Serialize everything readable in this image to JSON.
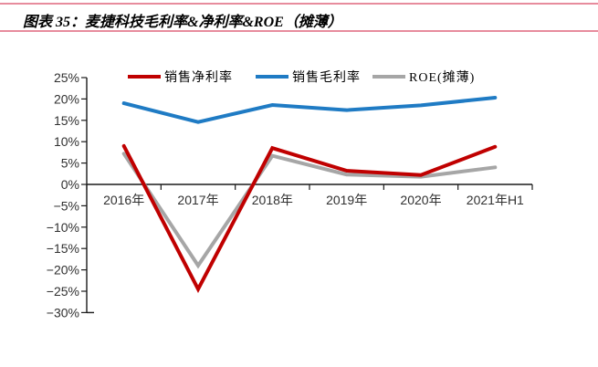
{
  "header": {
    "title": "图表 35：麦捷科技毛利率&净利率&ROE（摊薄）"
  },
  "colors": {
    "rule_pink": "#e78c9d",
    "axis_black": "#1a1a1a",
    "net_margin_red": "#c00000",
    "gross_margin_blue": "#1f7bc4",
    "roe_gray": "#a6a6a6",
    "background": "#ffffff"
  },
  "chart_data": {
    "type": "line",
    "title": "麦捷科技毛利率&净利率&ROE（摊薄）",
    "categories": [
      "2016年",
      "2017年",
      "2018年",
      "2019年",
      "2020年",
      "2021年H1"
    ],
    "series": [
      {
        "id": "net-profit-margin",
        "name": "销售净利率",
        "color": "#c00000",
        "values": [
          9.0,
          -24.5,
          8.5,
          3.2,
          2.2,
          8.8
        ]
      },
      {
        "id": "gross-profit-margin",
        "name": "销售毛利率",
        "color": "#1f7bc4",
        "values": [
          19.0,
          14.6,
          18.6,
          17.4,
          18.5,
          20.3
        ]
      },
      {
        "id": "roe-diluted",
        "name": "ROE(摊薄)",
        "color": "#a6a6a6",
        "values": [
          7.2,
          -19.0,
          6.7,
          2.3,
          1.8,
          4.0
        ]
      }
    ],
    "draw_order": [
      2,
      1,
      0
    ],
    "ylim": [
      -30,
      25
    ],
    "ytick_step": 5,
    "ytick_labels": [
      "25%",
      "20%",
      "15%",
      "10%",
      "5%",
      "0%",
      "−5%",
      "−10%",
      "−15%",
      "−20%",
      "−25%",
      "−30%"
    ],
    "xlabel": "",
    "ylabel": "",
    "grid": false,
    "legend_position": "top"
  }
}
